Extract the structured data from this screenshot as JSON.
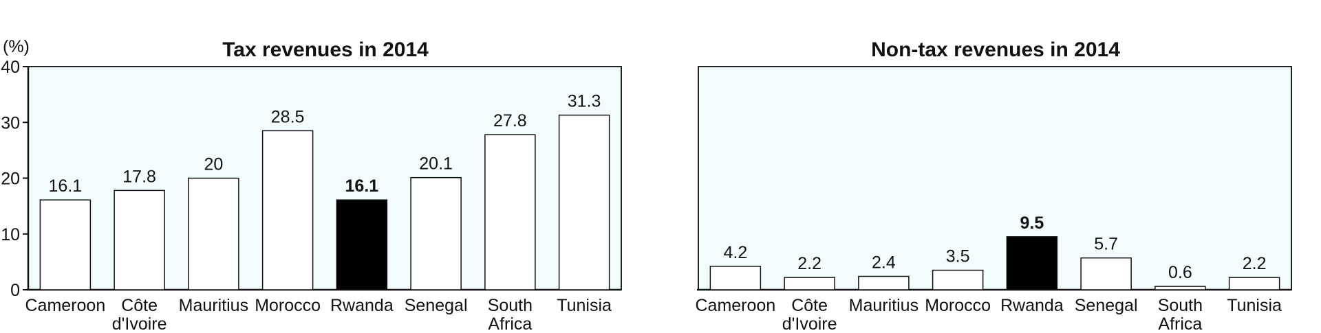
{
  "highlight_color": "#000000",
  "bar_color": "#ffffff",
  "plot_background": "#f2fcfc",
  "chart_data": [
    {
      "type": "bar",
      "title": "Tax revenues in 2014",
      "ylabel": "(%)",
      "ylim": [
        0,
        40
      ],
      "yticks": [
        "0",
        "10",
        "20",
        "30",
        "40"
      ],
      "categories": [
        [
          "Cameroon"
        ],
        [
          "Côte",
          "d'Ivoire"
        ],
        [
          "Mauritius"
        ],
        [
          "Morocco"
        ],
        [
          "Rwanda"
        ],
        [
          "Senegal"
        ],
        [
          "South",
          "Africa"
        ],
        [
          "Tunisia"
        ]
      ],
      "values": [
        16.1,
        17.8,
        20,
        28.5,
        16.1,
        20.1,
        27.8,
        31.3
      ],
      "value_labels": [
        "16.1",
        "17.8",
        "20",
        "28.5",
        "16.1",
        "20.1",
        "27.8",
        "31.3"
      ],
      "highlight_index": 4
    },
    {
      "type": "bar",
      "title": "Non-tax revenues in 2014",
      "ylabel": "",
      "ylim": [
        0,
        40
      ],
      "yticks": [],
      "categories": [
        [
          "Cameroon"
        ],
        [
          "Côte",
          "d'Ivoire"
        ],
        [
          "Mauritius"
        ],
        [
          "Morocco"
        ],
        [
          "Rwanda"
        ],
        [
          "Senegal"
        ],
        [
          "South",
          "Africa"
        ],
        [
          "Tunisia"
        ]
      ],
      "values": [
        4.2,
        2.2,
        2.4,
        3.5,
        9.5,
        5.7,
        0.6,
        2.2
      ],
      "value_labels": [
        "4.2",
        "2.2",
        "2.4",
        "3.5",
        "9.5",
        "5.7",
        "0.6",
        "2.2"
      ],
      "highlight_index": 4
    }
  ]
}
